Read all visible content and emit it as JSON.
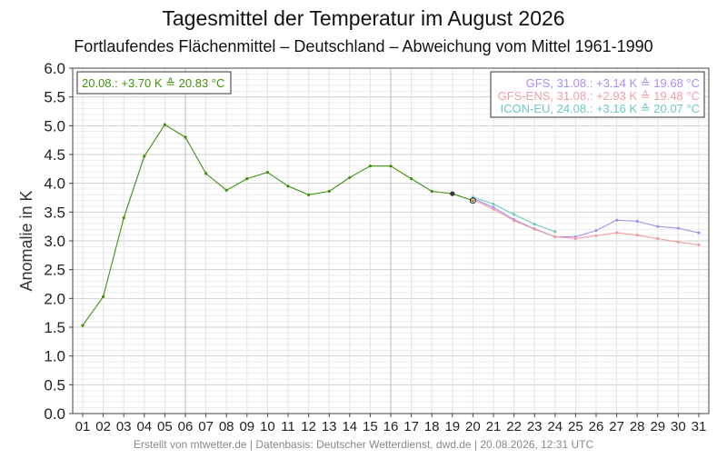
{
  "chart_data": {
    "type": "line",
    "title": "Tagesmittel der Temperatur im August 2026",
    "subtitle": "Fortlaufendes Flächenmittel – Deutschland – Abweichung vom Mittel 1961-1990",
    "xlabel": "",
    "ylabel": "Anomalie in K",
    "ylim": [
      0,
      6
    ],
    "y_ticks": [
      "0.0",
      "0.5",
      "1.0",
      "1.5",
      "2.0",
      "2.5",
      "3.0",
      "3.5",
      "4.0",
      "4.5",
      "5.0",
      "5.5",
      "6.0"
    ],
    "x_ticks": [
      "01",
      "02",
      "03",
      "04",
      "05",
      "06",
      "07",
      "08",
      "09",
      "10",
      "11",
      "12",
      "13",
      "14",
      "15",
      "16",
      "17",
      "18",
      "19",
      "20",
      "21",
      "22",
      "23",
      "24",
      "25",
      "26",
      "27",
      "28",
      "29",
      "30",
      "31"
    ],
    "grid": true,
    "series": [
      {
        "key": "observed",
        "color": "#3f8f0f",
        "x": [
          1,
          2,
          3,
          4,
          5,
          6,
          7,
          8,
          9,
          10,
          11,
          12,
          13,
          14,
          15,
          16,
          17,
          18,
          19,
          20
        ],
        "values": [
          1.53,
          2.03,
          3.4,
          4.47,
          5.02,
          4.8,
          4.17,
          3.88,
          4.08,
          4.19,
          3.95,
          3.8,
          3.86,
          4.1,
          4.3,
          4.3,
          4.08,
          3.86,
          3.82,
          3.7
        ]
      },
      {
        "key": "gfs",
        "color": "#a98ff0",
        "x": [
          20,
          21,
          22,
          23,
          24,
          25,
          26,
          27,
          28,
          29,
          30,
          31
        ],
        "values": [
          3.74,
          3.58,
          3.37,
          3.21,
          3.07,
          3.07,
          3.18,
          3.36,
          3.34,
          3.25,
          3.22,
          3.14
        ]
      },
      {
        "key": "gfs_ens",
        "color": "#ee9fa6",
        "x": [
          20,
          21,
          22,
          23,
          24,
          25,
          26,
          27,
          28,
          29,
          30,
          31
        ],
        "values": [
          3.72,
          3.55,
          3.35,
          3.2,
          3.07,
          3.04,
          3.09,
          3.14,
          3.1,
          3.04,
          2.98,
          2.93
        ]
      },
      {
        "key": "icon_eu",
        "color": "#6fc8c4",
        "x": [
          20,
          21,
          22,
          23,
          24
        ],
        "values": [
          3.76,
          3.64,
          3.46,
          3.29,
          3.16
        ]
      }
    ],
    "markers": [
      {
        "x": 19,
        "y": 3.82,
        "style": "filled"
      },
      {
        "x": 20,
        "y": 3.7,
        "style": "open"
      }
    ],
    "legend_left": {
      "text": "20.08.: +3.70 K ≙ 20.83 °C",
      "color": "#3f8f0f",
      "placement": "top-left"
    },
    "legend_right": {
      "placement": "top-right",
      "entries": [
        {
          "text": "GFS, 31.08.: +3.14 K ≙ 19.68 °C",
          "color": "#a98ff0"
        },
        {
          "text": "GFS-ENS, 31.08.: +2.93 K ≙ 19.48 °C",
          "color": "#ee9fa6"
        },
        {
          "text": "ICON-EU, 24.08.: +3.16 K ≙ 20.07 °C",
          "color": "#6fc8c4"
        }
      ]
    },
    "footer": "Erstellt von mtwetter.de | Datenbasis: Deutscher Wetterdienst, dwd.de | 20.08.2026, 12:31 UTC"
  }
}
